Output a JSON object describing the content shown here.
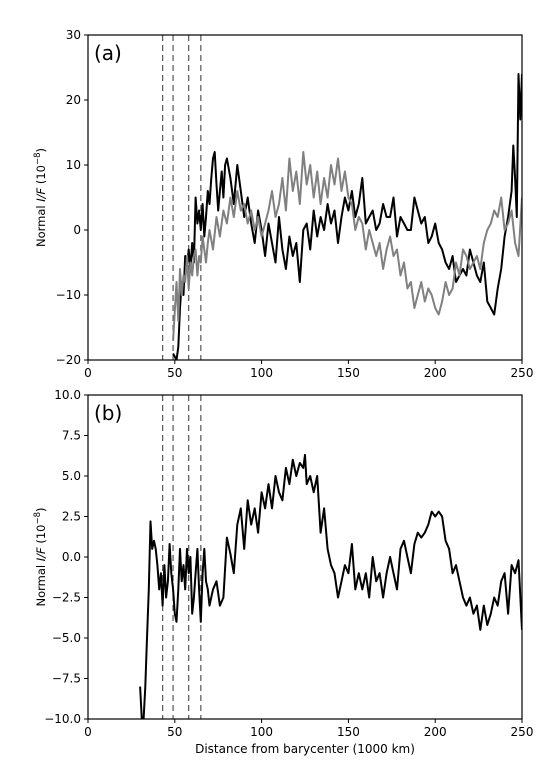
{
  "chart_data": [
    {
      "type": "line",
      "panel_label": "(a)",
      "ylabel_prefix": "Normal ",
      "ylabel_italic": "I/F",
      "ylabel_suffix": " (10",
      "ylabel_exp": "−8",
      "ylabel_close": ")",
      "xlabel": "",
      "xlim": [
        0,
        250
      ],
      "ylim": [
        -20,
        30
      ],
      "xticks": [
        0,
        50,
        100,
        150,
        200,
        250
      ],
      "yticks": [
        -20,
        -10,
        0,
        10,
        20,
        30
      ],
      "ytick_labels": [
        "−20",
        "−10",
        "0",
        "10",
        "20",
        "30"
      ],
      "vlines": [
        43,
        49,
        58,
        65
      ],
      "grid": false,
      "series": [
        {
          "color": "#000000",
          "x": [
            49,
            51,
            52,
            53,
            54,
            55,
            56,
            57,
            58,
            59,
            60,
            61,
            62,
            63,
            64,
            65,
            66,
            67,
            68,
            69,
            70,
            71,
            72,
            73,
            74,
            75,
            76,
            77,
            78,
            79,
            80,
            82,
            84,
            86,
            88,
            90,
            92,
            94,
            96,
            98,
            100,
            102,
            104,
            106,
            108,
            110,
            112,
            114,
            116,
            118,
            120,
            122,
            124,
            126,
            128,
            130,
            132,
            134,
            136,
            138,
            140,
            142,
            144,
            146,
            148,
            150,
            152,
            154,
            156,
            158,
            160,
            162,
            164,
            166,
            168,
            170,
            172,
            174,
            176,
            178,
            180,
            182,
            184,
            186,
            188,
            190,
            192,
            194,
            196,
            198,
            200,
            202,
            204,
            206,
            208,
            210,
            212,
            214,
            216,
            218,
            220,
            222,
            224,
            226,
            228,
            230,
            232,
            234,
            236,
            238,
            240,
            242,
            244,
            245,
            246,
            247,
            248,
            249,
            250
          ],
          "y": [
            -19,
            -20,
            -18,
            -12,
            -8,
            -10,
            -4,
            -6,
            -3,
            -6,
            -2,
            -5,
            5,
            1,
            3,
            0,
            4,
            -1,
            2,
            6,
            4,
            8,
            11,
            12,
            7,
            3,
            6,
            9,
            5,
            10,
            11,
            8,
            4,
            10,
            6,
            2,
            5,
            1,
            -2,
            3,
            0,
            -4,
            1,
            -2,
            -5,
            2,
            -3,
            -6,
            -1,
            -4,
            -2,
            -8,
            0,
            1,
            -3,
            3,
            -1,
            2,
            0,
            4,
            1,
            3,
            -2,
            2,
            5,
            3,
            6,
            2,
            4,
            8,
            1,
            2,
            3,
            0,
            1,
            4,
            2,
            2,
            5,
            -1,
            2,
            1,
            0,
            0,
            5,
            3,
            1,
            2,
            -2,
            -1,
            1,
            -2,
            -3,
            -5,
            -6,
            -4,
            -8,
            -7,
            -6,
            -7,
            -3,
            -5,
            -7,
            -8,
            -5,
            -11,
            -12,
            -13,
            -9,
            -6,
            -1,
            2,
            6,
            13,
            8,
            2,
            24,
            17,
            24
          ]
        },
        {
          "color": "#808080",
          "x": [
            49,
            51,
            52,
            53,
            54,
            55,
            56,
            57,
            58,
            59,
            60,
            61,
            62,
            63,
            64,
            65,
            66,
            67,
            68,
            69,
            70,
            72,
            74,
            76,
            78,
            80,
            82,
            84,
            86,
            88,
            90,
            92,
            94,
            96,
            98,
            100,
            102,
            104,
            106,
            108,
            110,
            112,
            114,
            116,
            118,
            120,
            122,
            124,
            126,
            128,
            130,
            132,
            134,
            136,
            138,
            140,
            142,
            144,
            146,
            148,
            150,
            152,
            154,
            156,
            158,
            160,
            162,
            164,
            166,
            168,
            170,
            172,
            174,
            176,
            178,
            180,
            182,
            184,
            186,
            188,
            190,
            192,
            194,
            196,
            198,
            200,
            202,
            204,
            206,
            208,
            210,
            212,
            214,
            216,
            218,
            220,
            222,
            224,
            226,
            228,
            230,
            232,
            234,
            236,
            238,
            240,
            242,
            244,
            246,
            248,
            250
          ],
          "y": [
            -17,
            -8,
            -14,
            -6,
            -10,
            -7,
            -8,
            -4,
            -9,
            -5,
            -7,
            -4,
            -3,
            -7,
            -4,
            -5,
            -1,
            -3,
            -5,
            -2,
            0,
            -3,
            2,
            -1,
            3,
            1,
            5,
            2,
            6,
            3,
            4,
            1,
            3,
            0,
            2,
            -1,
            1,
            3,
            6,
            2,
            4,
            8,
            3,
            11,
            6,
            9,
            4,
            12,
            7,
            10,
            5,
            9,
            4,
            8,
            5,
            10,
            7,
            11,
            6,
            9,
            5,
            4,
            0,
            2,
            1,
            -3,
            0,
            -2,
            -4,
            -2,
            -6,
            -3,
            -1,
            -4,
            -3,
            -7,
            -5,
            -9,
            -8,
            -12,
            -10,
            -8,
            -11,
            -9,
            -10,
            -12,
            -13,
            -11,
            -8,
            -10,
            -9,
            -5,
            -7,
            -3,
            -4,
            -6,
            -5,
            -4,
            -6,
            -2,
            0,
            1,
            3,
            2,
            5,
            0,
            1,
            3,
            -2,
            -4,
            5
          ]
        }
      ]
    },
    {
      "type": "line",
      "panel_label": "(b)",
      "ylabel_prefix": "Normal ",
      "ylabel_italic": "I/F",
      "ylabel_suffix": " (10",
      "ylabel_exp": "−8",
      "ylabel_close": ")",
      "xlabel": "Distance from barycenter (1000 km)",
      "xlim": [
        0,
        250
      ],
      "ylim": [
        -10,
        10
      ],
      "xticks": [
        0,
        50,
        100,
        150,
        200,
        250
      ],
      "yticks": [
        -10,
        -7.5,
        -5,
        -2.5,
        0,
        2.5,
        5,
        7.5,
        10
      ],
      "ytick_labels": [
        "−10.0",
        "−7.5",
        "−5.0",
        "−2.5",
        "0.0",
        "2.5",
        "5.0",
        "7.5",
        "10.0"
      ],
      "vlines": [
        43,
        49,
        58,
        65
      ],
      "grid": false,
      "series": [
        {
          "color": "#000000",
          "x": [
            30,
            31,
            32,
            33,
            34,
            35,
            36,
            37,
            38,
            39,
            40,
            41,
            42,
            43,
            44,
            45,
            46,
            47,
            48,
            49,
            50,
            51,
            52,
            53,
            54,
            55,
            56,
            57,
            58,
            59,
            60,
            61,
            62,
            63,
            64,
            65,
            66,
            67,
            68,
            69,
            70,
            72,
            74,
            76,
            78,
            80,
            82,
            84,
            86,
            88,
            90,
            92,
            94,
            96,
            98,
            100,
            102,
            104,
            106,
            108,
            110,
            112,
            114,
            116,
            118,
            120,
            122,
            124,
            125,
            126,
            128,
            130,
            132,
            134,
            136,
            138,
            140,
            142,
            144,
            146,
            148,
            150,
            152,
            154,
            156,
            158,
            160,
            162,
            164,
            166,
            168,
            170,
            172,
            174,
            176,
            178,
            180,
            182,
            184,
            186,
            188,
            190,
            192,
            194,
            196,
            198,
            200,
            202,
            204,
            206,
            208,
            210,
            212,
            214,
            216,
            218,
            220,
            222,
            224,
            226,
            228,
            230,
            232,
            234,
            236,
            238,
            240,
            242,
            244,
            246,
            248,
            250
          ],
          "y": [
            -8,
            -10,
            -10,
            -8,
            -5,
            -2,
            2.2,
            0.5,
            1,
            0.5,
            -0.5,
            -2,
            -1,
            -3,
            -0.5,
            -2.5,
            -1.5,
            0.8,
            -1,
            -2,
            -3.5,
            -4,
            -2,
            0.5,
            -1.5,
            -0.5,
            -2,
            0.5,
            -1,
            0,
            -3.5,
            -2.5,
            -1,
            0.5,
            -2,
            -4,
            -1,
            0.5,
            -1.5,
            -2,
            -3,
            -2,
            -1.5,
            -3,
            -2.5,
            1.2,
            0.2,
            -1,
            2,
            3,
            0.5,
            3.5,
            2,
            3,
            1.5,
            4,
            3,
            4.5,
            3,
            5,
            4,
            3.5,
            5.5,
            4.5,
            6,
            5,
            5.8,
            5.5,
            6.3,
            4.5,
            5,
            4,
            5,
            1.5,
            3,
            0.5,
            -0.5,
            -1,
            -2.5,
            -1.5,
            -0.5,
            -1,
            0.8,
            -2,
            -1,
            -2,
            -1,
            -2.5,
            0,
            -1.5,
            -1,
            -2.5,
            -1,
            0,
            -1,
            -2,
            0.5,
            1,
            0,
            -1,
            0.8,
            1.5,
            1.2,
            1.5,
            2,
            2.8,
            2.5,
            2.8,
            2.5,
            1,
            0.5,
            -1,
            -0.5,
            -1.5,
            -2.5,
            -3,
            -2.5,
            -3.5,
            -3,
            -4.5,
            -3,
            -4.2,
            -3.5,
            -2.5,
            -3,
            -1.5,
            -1,
            -3.5,
            -0.5,
            -1,
            -0.2,
            -4.5
          ]
        }
      ]
    }
  ]
}
